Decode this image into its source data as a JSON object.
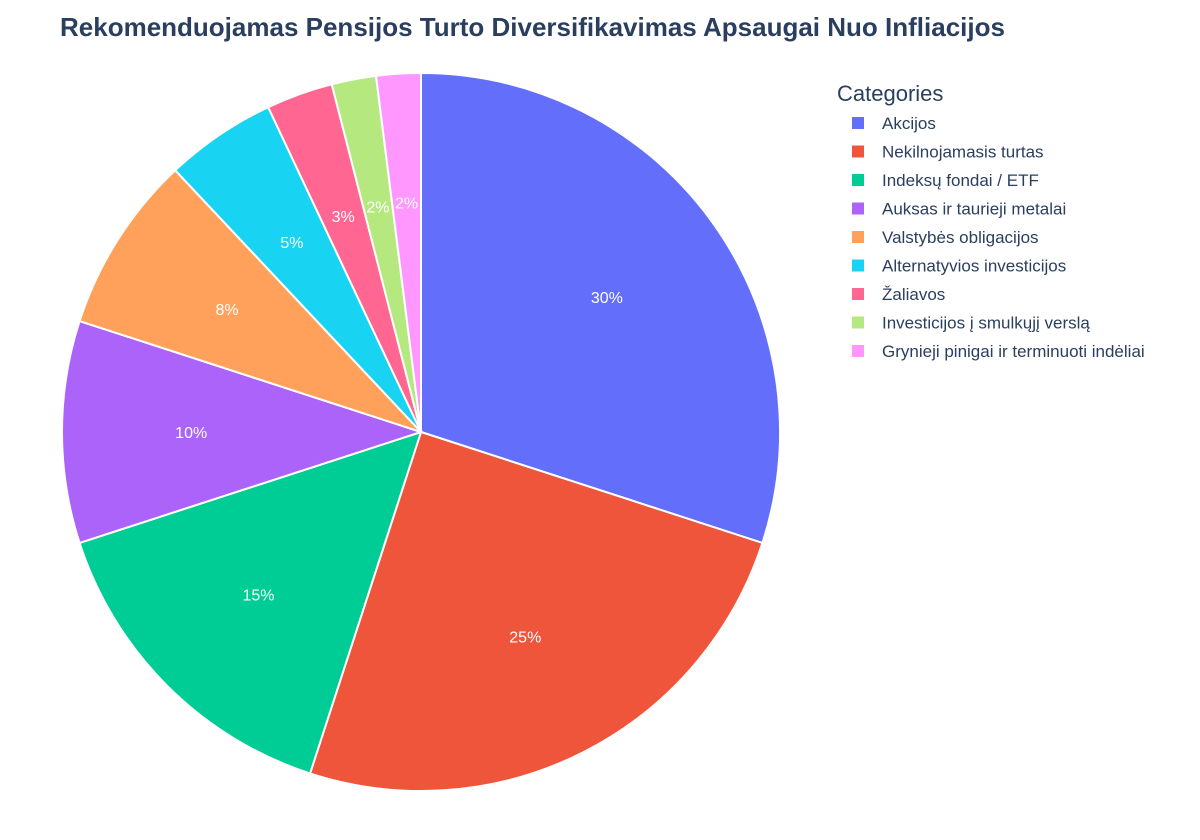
{
  "chart_data": {
    "type": "pie",
    "title": "Rekomenduojamas Pensijos Turto Diversifikavimas Apsaugai Nuo Infliacijos",
    "legend_title": "Categories",
    "legend_position": "right",
    "slices": [
      {
        "label": "Akcijos",
        "value": 30,
        "text": "30%",
        "color": "#636efa"
      },
      {
        "label": "Nekilnojamasis turtas",
        "value": 25,
        "text": "25%",
        "color": "#ef553b"
      },
      {
        "label": "Indeksų fondai / ETF",
        "value": 15,
        "text": "15%",
        "color": "#00cc96"
      },
      {
        "label": "Auksas ir taurieji metalai",
        "value": 10,
        "text": "10%",
        "color": "#ab63fa"
      },
      {
        "label": "Valstybės obligacijos",
        "value": 8,
        "text": "8%",
        "color": "#ffa15a"
      },
      {
        "label": "Alternatyvios investicijos",
        "value": 5,
        "text": "5%",
        "color": "#19d3f3"
      },
      {
        "label": "Žaliavos",
        "value": 3,
        "text": "3%",
        "color": "#ff6692"
      },
      {
        "label": "Investicijos į smulkųjį verslą",
        "value": 2,
        "text": "2%",
        "color": "#b6e880"
      },
      {
        "label": "Grynieji pinigai ir terminuoti indėliai",
        "value": 2,
        "text": "2%",
        "color": "#ff97ff"
      }
    ]
  }
}
